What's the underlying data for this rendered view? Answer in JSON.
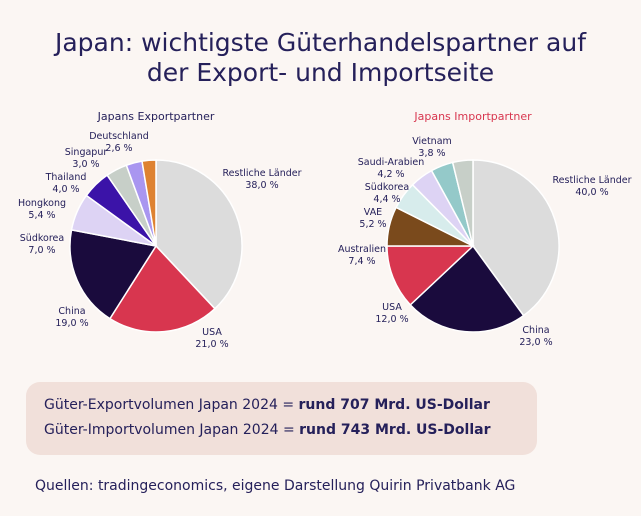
{
  "title_line1": "Japan: wichtigste Güterhandelspartner auf",
  "title_line2": "der Export- und Importseite",
  "chart_data": [
    {
      "type": "pie",
      "title": "Japans Exportpartner",
      "title_color": "#25205a",
      "slices": [
        {
          "label": "Restliche Länder",
          "value": 38.0,
          "display": "38,0 %",
          "color": "#dcdcdc"
        },
        {
          "label": "USA",
          "value": 21.0,
          "display": "21,0 %",
          "color": "#d8364f"
        },
        {
          "label": "China",
          "value": 19.0,
          "display": "19,0 %",
          "color": "#1a0b3d"
        },
        {
          "label": "Südkorea",
          "value": 7.0,
          "display": "7,0 %",
          "color": "#ddd3f4"
        },
        {
          "label": "Hongkong",
          "value": 5.4,
          "display": "5,4 %",
          "color": "#3b13a8"
        },
        {
          "label": "Thailand",
          "value": 4.0,
          "display": "4,0 %",
          "color": "#c7cfc8"
        },
        {
          "label": "Singapur",
          "value": 3.0,
          "display": "3,0 %",
          "color": "#a996f0"
        },
        {
          "label": "Deutschland",
          "value": 2.6,
          "display": "2,6 %",
          "color": "#de8231"
        }
      ]
    },
    {
      "type": "pie",
      "title": "Japans Importpartner",
      "title_color": "#d8364f",
      "slices": [
        {
          "label": "Restliche Länder",
          "value": 40.0,
          "display": "40,0 %",
          "color": "#dcdcdc"
        },
        {
          "label": "China",
          "value": 23.0,
          "display": "23,0 %",
          "color": "#1a0b3d"
        },
        {
          "label": "USA",
          "value": 12.0,
          "display": "12,0 %",
          "color": "#d8364f"
        },
        {
          "label": "Australien",
          "value": 7.4,
          "display": "7,4 %",
          "color": "#7a4a1c"
        },
        {
          "label": "VAE",
          "value": 5.2,
          "display": "5,2 %",
          "color": "#d7ecec"
        },
        {
          "label": "Südkorea",
          "value": 4.4,
          "display": "4,4 %",
          "color": "#ddd3f4"
        },
        {
          "label": "Saudi-Arabien",
          "value": 4.2,
          "display": "4,2 %",
          "color": "#94c9c9"
        },
        {
          "label": "Vietnam",
          "value": 3.8,
          "display": "3,8 %",
          "color": "#c7cfc8"
        }
      ]
    }
  ],
  "summary": {
    "export_prefix": "Güter-Exportvolumen Japan 2024 = ",
    "export_value": "rund 707 Mrd. US-Dollar",
    "import_prefix": "Güter-Importvolumen Japan 2024 = ",
    "import_value": "rund 743 Mrd. US-Dollar"
  },
  "source": "Quellen: tradingeconomics, eigene Darstellung Quirin Privatbank AG"
}
